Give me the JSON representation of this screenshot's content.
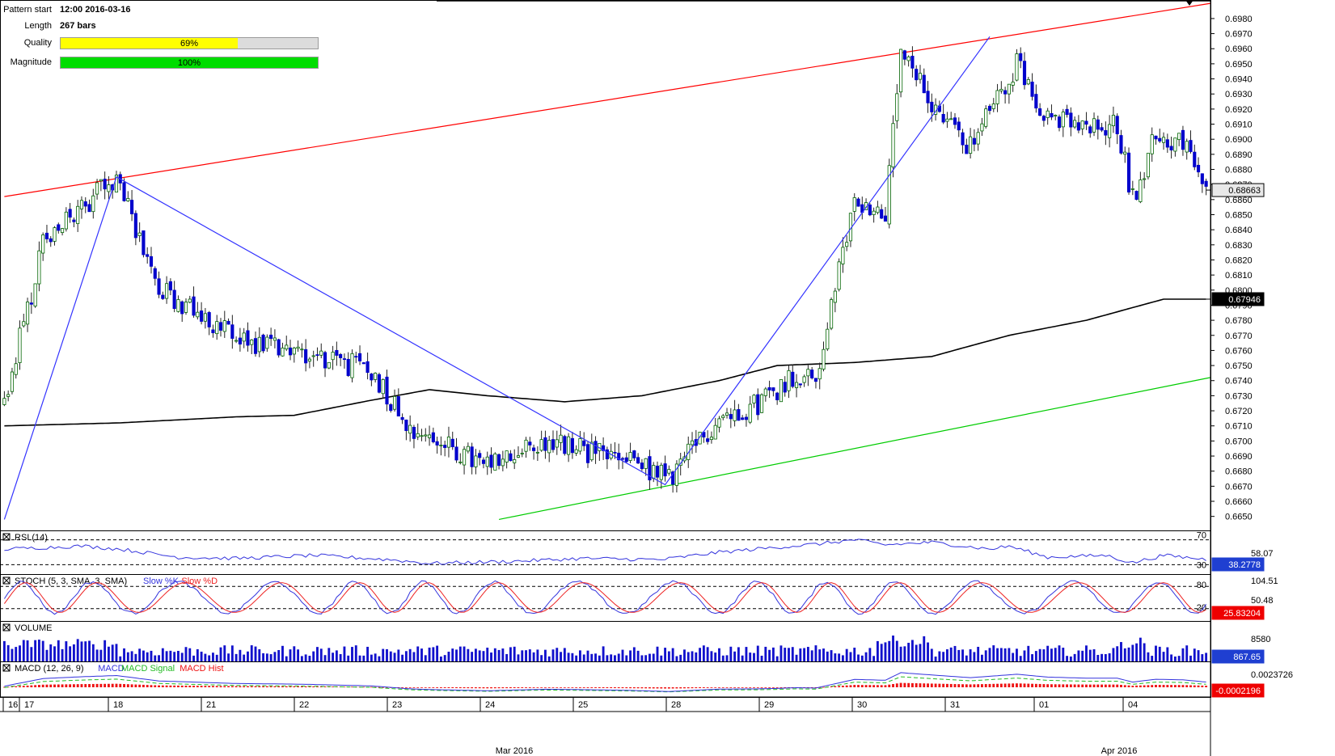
{
  "info": {
    "pattern_start_label": "Pattern start",
    "pattern_start_value": "12:00 2016-03-16",
    "length_label": "Length",
    "length_value": "267 bars",
    "quality_label": "Quality",
    "quality_value": "69%",
    "quality_fraction": 0.69,
    "quality_color": "#ffff00",
    "magnitude_label": "Magnitude",
    "magnitude_value": "100%",
    "magnitude_fraction": 1.0,
    "magnitude_color": "#00dd00"
  },
  "colors": {
    "bull": "#006400",
    "bear": "#0000cc",
    "upper_trendline": "#ff0000",
    "lower_trendline": "#00cc00",
    "pattern_lines": "#3333ff",
    "moving_average": "#000000",
    "rsi": "#3333dd",
    "stoch_k": "#3333dd",
    "stoch_d": "#ee2222",
    "volume": "#1111cc",
    "macd": "#3333dd",
    "macd_signal": "#22bb22",
    "macd_hist": "#ee1111",
    "price_tag_bg": "#000000",
    "value_tag_bg": "#1f3fd1",
    "neg_tag_bg": "#ee0000"
  },
  "chart_data": [
    {
      "type": "candlestick",
      "title": "",
      "ylim": [
        0.6645,
        0.6988
      ],
      "y_ticks": [
        "0.6980",
        "0.6970",
        "0.6960",
        "0.6950",
        "0.6940",
        "0.6930",
        "0.6920",
        "0.6910",
        "0.6900",
        "0.6890",
        "0.6880",
        "0.6870",
        "0.6860",
        "0.6850",
        "0.6840",
        "0.6830",
        "0.6820",
        "0.6810",
        "0.6800",
        "0.6790",
        "0.6780",
        "0.6770",
        "0.6760",
        "0.6750",
        "0.6740",
        "0.6730",
        "0.6720",
        "0.6710",
        "0.6700",
        "0.6690",
        "0.6680",
        "0.6670",
        "0.6660",
        "0.6650"
      ],
      "x_ticks": [
        "16",
        "17",
        "18",
        "21",
        "22",
        "23",
        "24",
        "Mar 2016",
        "25",
        "28",
        "29",
        "30",
        "31",
        "01",
        "04",
        "Apr 2016"
      ],
      "anchors": [
        {
          "bar": 0,
          "price": 0.6725
        },
        {
          "bar": 10,
          "price": 0.683
        },
        {
          "bar": 20,
          "price": 0.6856
        },
        {
          "bar": 29,
          "price": 0.6873
        },
        {
          "bar": 40,
          "price": 0.68
        },
        {
          "bar": 60,
          "price": 0.6768
        },
        {
          "bar": 80,
          "price": 0.6758
        },
        {
          "bar": 95,
          "price": 0.6746
        },
        {
          "bar": 105,
          "price": 0.671
        },
        {
          "bar": 125,
          "price": 0.6682
        },
        {
          "bar": 140,
          "price": 0.67
        },
        {
          "bar": 160,
          "price": 0.6688
        },
        {
          "bar": 172,
          "price": 0.6675
        },
        {
          "bar": 185,
          "price": 0.6715
        },
        {
          "bar": 195,
          "price": 0.6725
        },
        {
          "bar": 205,
          "price": 0.6745
        },
        {
          "bar": 210,
          "price": 0.674
        },
        {
          "bar": 215,
          "price": 0.68
        },
        {
          "bar": 220,
          "price": 0.686
        },
        {
          "bar": 228,
          "price": 0.685
        },
        {
          "bar": 232,
          "price": 0.6955
        },
        {
          "bar": 240,
          "price": 0.6925
        },
        {
          "bar": 250,
          "price": 0.6895
        },
        {
          "bar": 262,
          "price": 0.695
        },
        {
          "bar": 270,
          "price": 0.6915
        },
        {
          "bar": 280,
          "price": 0.6905
        },
        {
          "bar": 288,
          "price": 0.691
        },
        {
          "bar": 292,
          "price": 0.686
        },
        {
          "bar": 298,
          "price": 0.6903
        },
        {
          "bar": 305,
          "price": 0.6897
        },
        {
          "bar": 311,
          "price": 0.6866
        }
      ],
      "bars_count": 312,
      "last_price": "0.68663",
      "moving_average": {
        "label": "0.67946",
        "points": [
          [
            0,
            0.671
          ],
          [
            30,
            0.6712
          ],
          [
            60,
            0.6716
          ],
          [
            75,
            0.6717
          ],
          [
            95,
            0.6727
          ],
          [
            110,
            0.6734
          ],
          [
            125,
            0.673
          ],
          [
            145,
            0.6726
          ],
          [
            165,
            0.673
          ],
          [
            185,
            0.674
          ],
          [
            200,
            0.675
          ],
          [
            220,
            0.6752
          ],
          [
            240,
            0.6756
          ],
          [
            260,
            0.677
          ],
          [
            280,
            0.678
          ],
          [
            300,
            0.6794
          ]
        ]
      },
      "upper_trendline": [
        [
          0,
          0.6862
        ],
        [
          312,
          0.699
        ]
      ],
      "lower_trendline": [
        [
          128,
          0.6648
        ],
        [
          312,
          0.6742
        ]
      ],
      "pattern_zigzag": [
        [
          0,
          0.6648
        ],
        [
          29,
          0.6875
        ],
        [
          171,
          0.6671
        ],
        [
          255,
          0.6968
        ]
      ]
    },
    {
      "type": "line",
      "name": "RSI",
      "label": "RSI (14)",
      "ylim": [
        20,
        80
      ],
      "levels": [
        "70",
        "30"
      ],
      "mid_label": "58.07",
      "current": "38.2778",
      "anchors": [
        [
          0,
          55
        ],
        [
          20,
          60
        ],
        [
          30,
          55
        ],
        [
          45,
          42
        ],
        [
          60,
          40
        ],
        [
          80,
          45
        ],
        [
          100,
          38
        ],
        [
          110,
          32
        ],
        [
          130,
          35
        ],
        [
          150,
          40
        ],
        [
          170,
          38
        ],
        [
          185,
          50
        ],
        [
          200,
          58
        ],
        [
          210,
          63
        ],
        [
          220,
          70
        ],
        [
          228,
          62
        ],
        [
          240,
          66
        ],
        [
          255,
          55
        ],
        [
          260,
          60
        ],
        [
          270,
          42
        ],
        [
          285,
          45
        ],
        [
          292,
          33
        ],
        [
          300,
          45
        ],
        [
          312,
          38
        ]
      ]
    },
    {
      "type": "line",
      "name": "STOCH",
      "label": "STOCH (5, 3, SMA, 3, SMA)",
      "series_labels": [
        "Slow %K",
        "Slow %D"
      ],
      "ylim": [
        0,
        100
      ],
      "levels": [
        "80",
        "20"
      ],
      "top_label": "104.51",
      "mid_label": "50.48",
      "current": "25.83204"
    },
    {
      "type": "bar",
      "name": "VOLUME",
      "label": "VOLUME",
      "tick_label": "8580",
      "current": "867.65"
    },
    {
      "type": "line",
      "name": "MACD",
      "label": "MACD (12, 26, 9)",
      "series_labels": [
        "MACD",
        "MACD Signal",
        "MACD Hist"
      ],
      "top_label": "0.0023726",
      "current": "-0.0002196"
    }
  ]
}
